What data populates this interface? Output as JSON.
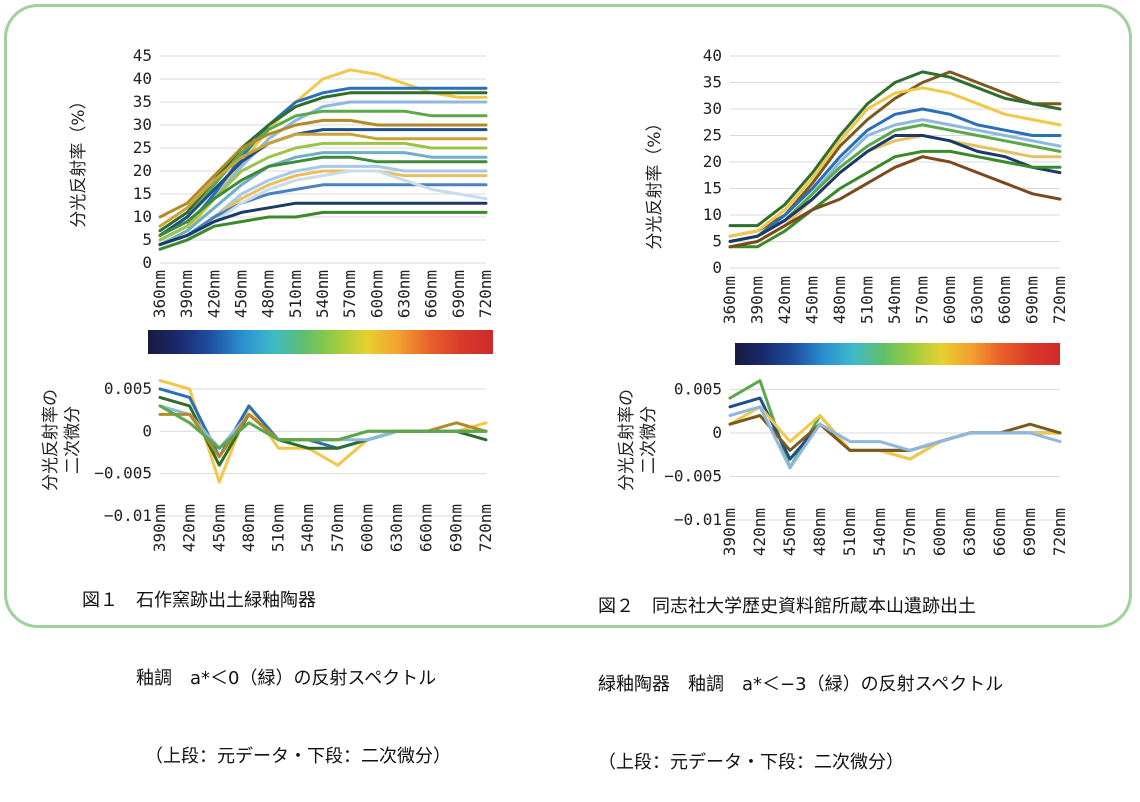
{
  "figures": [
    {
      "caption_lines": [
        "図１　石作窯跡出土緑釉陶器",
        "　　　釉調　a*＜0（緑）の反射スペクトル",
        "　　　　（上段：元データ・下段：二次微分）"
      ],
      "top_ylabel": "分光反射率（%）",
      "bottom_ylabel": [
        "分光反射率の",
        "二次微分"
      ]
    },
    {
      "caption_lines": [
        "図２　同志社大学歴史資料館所蔵本山遺跡出土",
        "緑釉陶器　釉調　a*＜−3（緑）の反射スペクトル",
        "（上段：元データ・下段：二次微分）"
      ],
      "top_ylabel": "分光反射率（%）",
      "bottom_ylabel": [
        "分光反射率の",
        "二次微分"
      ]
    }
  ],
  "colors": {
    "frame": "#9fd29a",
    "grid": "#d9d9d9",
    "spectrum": [
      "#1a1a40",
      "#1a2a6e",
      "#1f4fa0",
      "#2a8fd0",
      "#3fb9c8",
      "#5fbf6a",
      "#9ccc3f",
      "#e8d030",
      "#f2a030",
      "#e8602a",
      "#d83a2a",
      "#d02a2a"
    ]
  },
  "chart_data": [
    {
      "type": "line",
      "title": "",
      "xlabel": "",
      "ylabel": "分光反射率（%）",
      "x": [
        "360nm",
        "390nm",
        "420nm",
        "450nm",
        "480nm",
        "510nm",
        "540nm",
        "570nm",
        "600nm",
        "630nm",
        "660nm",
        "690nm",
        "720nm"
      ],
      "yticks": [
        "0",
        "5",
        "10",
        "15",
        "20",
        "25",
        "30",
        "35",
        "40",
        "45"
      ],
      "ylim": [
        0,
        45
      ],
      "grid": true,
      "series": [
        {
          "color": "#f2c84b",
          "values": [
            4,
            7,
            14,
            22,
            29,
            35,
            40,
            42,
            41,
            39,
            37,
            36,
            36
          ]
        },
        {
          "color": "#2a6fb8",
          "values": [
            5,
            8,
            15,
            23,
            30,
            35,
            37,
            38,
            38,
            38,
            38,
            38,
            38
          ]
        },
        {
          "color": "#2f6d2c",
          "values": [
            7,
            11,
            18,
            25,
            30,
            34,
            36,
            37,
            37,
            37,
            37,
            37,
            37
          ]
        },
        {
          "color": "#8fb8e0",
          "values": [
            5,
            8,
            14,
            21,
            27,
            31,
            34,
            35,
            35,
            35,
            35,
            35,
            35
          ]
        },
        {
          "color": "#5aa84a",
          "values": [
            6,
            10,
            17,
            24,
            29,
            32,
            33,
            33,
            33,
            33,
            32,
            32,
            32
          ]
        },
        {
          "color": "#b28a2a",
          "values": [
            10,
            13,
            19,
            25,
            28,
            30,
            31,
            31,
            30,
            30,
            30,
            30,
            30
          ]
        },
        {
          "color": "#1e4f8a",
          "values": [
            6,
            10,
            16,
            22,
            26,
            28,
            29,
            29,
            29,
            29,
            29,
            29,
            29
          ]
        },
        {
          "color": "#c9a23a",
          "values": [
            8,
            12,
            18,
            23,
            26,
            28,
            28,
            28,
            27,
            27,
            27,
            27,
            27
          ]
        },
        {
          "color": "#9cc34a",
          "values": [
            5,
            8,
            14,
            20,
            23,
            25,
            26,
            26,
            26,
            26,
            25,
            25,
            25
          ]
        },
        {
          "color": "#6fb0c8",
          "values": [
            4,
            7,
            12,
            17,
            21,
            23,
            24,
            24,
            24,
            24,
            23,
            23,
            23
          ]
        },
        {
          "color": "#3f8a3a",
          "values": [
            6,
            9,
            14,
            18,
            21,
            22,
            23,
            23,
            22,
            22,
            22,
            22,
            22
          ]
        },
        {
          "color": "#a6c8ea",
          "values": [
            3,
            5,
            10,
            15,
            18,
            20,
            21,
            21,
            21,
            20,
            20,
            20,
            20
          ]
        },
        {
          "color": "#e8c060",
          "values": [
            4,
            6,
            10,
            14,
            17,
            19,
            20,
            20,
            20,
            19,
            19,
            19,
            19
          ]
        },
        {
          "color": "#4a82c0",
          "values": [
            4,
            6,
            10,
            13,
            15,
            16,
            17,
            17,
            17,
            17,
            17,
            17,
            17
          ]
        },
        {
          "color": "#c8dde8",
          "values": [
            3,
            5,
            9,
            13,
            16,
            18,
            19,
            20,
            20,
            18,
            16,
            15,
            14
          ]
        },
        {
          "color": "#1b3a6b",
          "values": [
            4,
            6,
            9,
            11,
            12,
            13,
            13,
            13,
            13,
            13,
            13,
            13,
            13
          ]
        },
        {
          "color": "#3b8a2a",
          "values": [
            3,
            5,
            8,
            9,
            10,
            10,
            11,
            11,
            11,
            11,
            11,
            11,
            11
          ]
        }
      ]
    },
    {
      "type": "line",
      "title": "",
      "xlabel": "",
      "ylabel": "分光反射率の二次微分",
      "x": [
        "390nm",
        "420nm",
        "450nm",
        "480nm",
        "510nm",
        "540nm",
        "570nm",
        "600nm",
        "630nm",
        "660nm",
        "690nm",
        "720nm"
      ],
      "yticks": [
        "0.005",
        "0",
        "−0.005",
        "−0.01"
      ],
      "ylim": [
        -0.01,
        0.007
      ],
      "grid": true,
      "series": [
        {
          "color": "#f2c84b",
          "values": [
            0.006,
            0.005,
            -0.006,
            0.003,
            -0.002,
            -0.002,
            -0.004,
            -0.001,
            0.0,
            0.0,
            0.0,
            0.001
          ]
        },
        {
          "color": "#2a6fb8",
          "values": [
            0.005,
            0.004,
            -0.003,
            0.003,
            -0.001,
            -0.001,
            -0.002,
            -0.001,
            0.0,
            0.0,
            0.0,
            0.0
          ]
        },
        {
          "color": "#2f6d2c",
          "values": [
            0.004,
            0.003,
            -0.004,
            0.002,
            -0.001,
            -0.002,
            -0.002,
            -0.001,
            0.0,
            0.0,
            0.0,
            -0.001
          ]
        },
        {
          "color": "#8fb8e0",
          "values": [
            0.003,
            0.002,
            -0.002,
            0.002,
            -0.001,
            -0.001,
            -0.001,
            -0.001,
            0.0,
            0.0,
            0.0,
            0.0
          ]
        },
        {
          "color": "#b28a2a",
          "values": [
            0.002,
            0.002,
            -0.003,
            0.002,
            -0.001,
            -0.001,
            -0.001,
            0.0,
            0.0,
            0.0,
            0.001,
            0.0
          ]
        },
        {
          "color": "#5aa84a",
          "values": [
            0.003,
            0.001,
            -0.002,
            0.001,
            -0.001,
            -0.001,
            -0.001,
            0.0,
            0.0,
            0.0,
            0.0,
            0.0
          ]
        }
      ]
    },
    {
      "type": "line",
      "title": "",
      "xlabel": "",
      "ylabel": "分光反射率（%）",
      "x": [
        "360nm",
        "390nm",
        "420nm",
        "450nm",
        "480nm",
        "510nm",
        "540nm",
        "570nm",
        "600nm",
        "630nm",
        "660nm",
        "690nm",
        "720nm"
      ],
      "yticks": [
        "0",
        "5",
        "10",
        "15",
        "20",
        "25",
        "30",
        "35",
        "40"
      ],
      "ylim": [
        0,
        40
      ],
      "grid": true,
      "series": [
        {
          "color": "#7a5a1e",
          "values": [
            6,
            7,
            10,
            16,
            23,
            28,
            32,
            35,
            37,
            35,
            33,
            31,
            31
          ]
        },
        {
          "color": "#2f6d2c",
          "values": [
            8,
            8,
            12,
            18,
            25,
            31,
            35,
            37,
            36,
            34,
            32,
            31,
            30
          ]
        },
        {
          "color": "#f2c84b",
          "values": [
            6,
            7,
            11,
            17,
            24,
            30,
            33,
            34,
            33,
            31,
            29,
            28,
            27
          ]
        },
        {
          "color": "#2a6fb8",
          "values": [
            5,
            6,
            10,
            15,
            21,
            26,
            29,
            30,
            29,
            27,
            26,
            25,
            25
          ]
        },
        {
          "color": "#8fb8e0",
          "values": [
            5,
            6,
            9,
            14,
            20,
            25,
            27,
            28,
            27,
            26,
            25,
            24,
            23
          ]
        },
        {
          "color": "#5aa84a",
          "values": [
            5,
            6,
            9,
            14,
            19,
            23,
            26,
            27,
            26,
            25,
            24,
            23,
            22
          ]
        },
        {
          "color": "#e8c060",
          "values": [
            4,
            5,
            8,
            13,
            18,
            22,
            24,
            25,
            24,
            23,
            22,
            21,
            21
          ]
        },
        {
          "color": "#1b3a6b",
          "values": [
            5,
            6,
            9,
            13,
            18,
            22,
            25,
            25,
            24,
            22,
            21,
            19,
            18
          ]
        },
        {
          "color": "#3b8a2a",
          "values": [
            4,
            4,
            7,
            11,
            15,
            18,
            21,
            22,
            22,
            21,
            20,
            19,
            19
          ]
        },
        {
          "color": "#7a4a1e",
          "values": [
            4,
            5,
            8,
            11,
            13,
            16,
            19,
            21,
            20,
            18,
            16,
            14,
            13
          ]
        }
      ]
    },
    {
      "type": "line",
      "title": "",
      "xlabel": "",
      "ylabel": "分光反射率の二次微分",
      "x": [
        "390nm",
        "420nm",
        "450nm",
        "480nm",
        "510nm",
        "540nm",
        "570nm",
        "600nm",
        "630nm",
        "660nm",
        "690nm",
        "720nm"
      ],
      "yticks": [
        "0.005",
        "0",
        "−0.005",
        "−0.01"
      ],
      "ylim": [
        -0.01,
        0.007
      ],
      "grid": true,
      "series": [
        {
          "color": "#5aa84a",
          "values": [
            0.004,
            0.006,
            -0.004,
            0.002,
            -0.002,
            -0.002,
            -0.003,
            -0.001,
            0.0,
            0.0,
            0.0,
            0.0
          ]
        },
        {
          "color": "#1e4f8a",
          "values": [
            0.003,
            0.004,
            -0.003,
            0.001,
            -0.002,
            -0.002,
            -0.002,
            -0.001,
            0.0,
            0.0,
            0.0,
            0.0
          ]
        },
        {
          "color": "#f2c84b",
          "values": [
            0.001,
            0.003,
            -0.001,
            0.002,
            -0.002,
            -0.002,
            -0.003,
            -0.001,
            0.0,
            0.0,
            0.0,
            0.0
          ]
        },
        {
          "color": "#7a5a1e",
          "values": [
            0.001,
            0.002,
            -0.002,
            0.001,
            -0.002,
            -0.002,
            -0.002,
            -0.001,
            0.0,
            0.0,
            0.001,
            0.0
          ]
        },
        {
          "color": "#8fb8e0",
          "values": [
            0.002,
            0.003,
            -0.004,
            0.001,
            -0.001,
            -0.001,
            -0.002,
            -0.001,
            0.0,
            0.0,
            0.0,
            -0.001
          ]
        }
      ]
    }
  ]
}
